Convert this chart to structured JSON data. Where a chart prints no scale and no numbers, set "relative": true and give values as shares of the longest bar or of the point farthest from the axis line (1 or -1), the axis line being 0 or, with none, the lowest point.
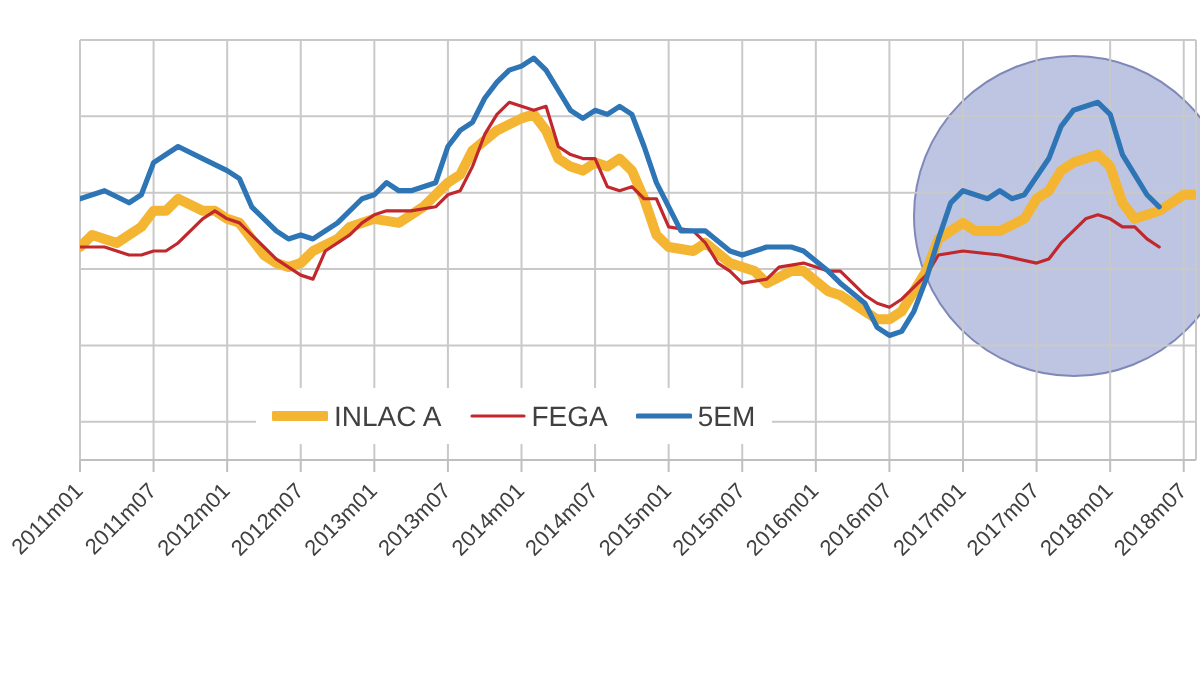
{
  "chart_data": {
    "type": "line",
    "relative": true,
    "grid": true,
    "legend": "bottom",
    "xlim": [
      "2011-01",
      "2018-08"
    ],
    "xticks": [
      {
        "value": "2011-01",
        "label": "2011m01"
      },
      {
        "value": "2011-07",
        "label": "2011m07"
      },
      {
        "value": "2012-01",
        "label": "2012m01"
      },
      {
        "value": "2012-07",
        "label": "2012m07"
      },
      {
        "value": "2013-01",
        "label": "2013m01"
      },
      {
        "value": "2013-07",
        "label": "2013m07"
      },
      {
        "value": "2014-01",
        "label": "2014m01"
      },
      {
        "value": "2014-07",
        "label": "2014m07"
      },
      {
        "value": "2015-01",
        "label": "2015m01"
      },
      {
        "value": "2015-07",
        "label": "2015m07"
      },
      {
        "value": "2016-01",
        "label": "2016m01"
      },
      {
        "value": "2016-07",
        "label": "2016m07"
      },
      {
        "value": "2017-01",
        "label": "2017m01"
      },
      {
        "value": "2017-07",
        "label": "2017m07"
      },
      {
        "value": "2018-01",
        "label": "2018m01"
      },
      {
        "value": "2018-07",
        "label": "2018m07"
      }
    ],
    "series": [
      {
        "name": "INLAC A",
        "color": "#f4b532",
        "x": [
          "2011-01",
          "2011-02",
          "2011-04",
          "2011-06",
          "2011-07",
          "2011-08",
          "2011-09",
          "2011-11",
          "2011-12",
          "2012-01",
          "2012-02",
          "2012-03",
          "2012-04",
          "2012-05",
          "2012-06",
          "2012-07",
          "2012-08",
          "2012-10",
          "2012-11",
          "2013-01",
          "2013-03",
          "2013-05",
          "2013-07",
          "2013-08",
          "2013-09",
          "2013-11",
          "2014-01",
          "2014-02",
          "2014-03",
          "2014-04",
          "2014-05",
          "2014-06",
          "2014-07",
          "2014-08",
          "2014-09",
          "2014-10",
          "2014-11",
          "2014-12",
          "2015-01",
          "2015-03",
          "2015-04",
          "2015-06",
          "2015-08",
          "2015-09",
          "2015-11",
          "2015-12",
          "2016-02",
          "2016-03",
          "2016-04",
          "2016-06",
          "2016-07",
          "2016-08",
          "2016-10",
          "2016-11",
          "2017-01",
          "2017-02",
          "2017-04",
          "2017-06",
          "2017-07",
          "2017-08",
          "2017-09",
          "2017-10",
          "2017-11",
          "2017-12",
          "2018-01",
          "2018-02",
          "2018-03",
          "2018-05",
          "2018-07",
          "2018-08"
        ],
        "values": [
          0.53,
          0.56,
          0.54,
          0.58,
          0.62,
          0.62,
          0.65,
          0.62,
          0.62,
          0.6,
          0.59,
          0.55,
          0.51,
          0.49,
          0.48,
          0.49,
          0.52,
          0.55,
          0.58,
          0.6,
          0.59,
          0.63,
          0.69,
          0.71,
          0.77,
          0.82,
          0.85,
          0.86,
          0.82,
          0.75,
          0.73,
          0.72,
          0.74,
          0.73,
          0.75,
          0.72,
          0.65,
          0.56,
          0.53,
          0.52,
          0.54,
          0.49,
          0.47,
          0.44,
          0.47,
          0.47,
          0.42,
          0.41,
          0.39,
          0.35,
          0.35,
          0.37,
          0.47,
          0.55,
          0.59,
          0.57,
          0.57,
          0.6,
          0.65,
          0.67,
          0.72,
          0.74,
          0.75,
          0.76,
          0.73,
          0.64,
          0.6,
          0.62,
          0.66,
          0.66
        ]
      },
      {
        "name": "FEGA",
        "color": "#c0282d",
        "x": [
          "2011-01",
          "2011-03",
          "2011-04",
          "2011-05",
          "2011-06",
          "2011-07",
          "2011-08",
          "2011-09",
          "2011-10",
          "2011-11",
          "2011-12",
          "2012-01",
          "2012-02",
          "2012-04",
          "2012-05",
          "2012-06",
          "2012-07",
          "2012-08",
          "2012-09",
          "2012-11",
          "2012-12",
          "2013-01",
          "2013-02",
          "2013-03",
          "2013-04",
          "2013-06",
          "2013-07",
          "2013-08",
          "2013-09",
          "2013-10",
          "2013-11",
          "2013-12",
          "2014-01",
          "2014-02",
          "2014-03",
          "2014-04",
          "2014-05",
          "2014-06",
          "2014-07",
          "2014-08",
          "2014-09",
          "2014-10",
          "2014-11",
          "2014-12",
          "2015-01",
          "2015-03",
          "2015-04",
          "2015-05",
          "2015-06",
          "2015-07",
          "2015-09",
          "2015-10",
          "2015-12",
          "2016-02",
          "2016-03",
          "2016-04",
          "2016-05",
          "2016-06",
          "2016-07",
          "2016-08",
          "2016-10",
          "2016-11",
          "2017-01",
          "2017-04",
          "2017-07",
          "2017-08",
          "2017-09",
          "2017-10",
          "2017-11",
          "2017-12",
          "2018-01",
          "2018-02",
          "2018-03",
          "2018-04",
          "2018-05"
        ],
        "values": [
          0.53,
          0.53,
          0.52,
          0.51,
          0.51,
          0.52,
          0.52,
          0.54,
          0.57,
          0.6,
          0.62,
          0.6,
          0.59,
          0.53,
          0.5,
          0.48,
          0.46,
          0.45,
          0.52,
          0.56,
          0.59,
          0.61,
          0.62,
          0.62,
          0.62,
          0.63,
          0.66,
          0.67,
          0.73,
          0.81,
          0.86,
          0.89,
          0.88,
          0.87,
          0.88,
          0.78,
          0.76,
          0.75,
          0.75,
          0.68,
          0.67,
          0.68,
          0.65,
          0.65,
          0.58,
          0.57,
          0.54,
          0.49,
          0.47,
          0.44,
          0.45,
          0.48,
          0.49,
          0.47,
          0.47,
          0.44,
          0.41,
          0.39,
          0.38,
          0.4,
          0.46,
          0.51,
          0.52,
          0.51,
          0.49,
          0.5,
          0.54,
          0.57,
          0.6,
          0.61,
          0.6,
          0.58,
          0.58,
          0.55,
          0.53
        ]
      },
      {
        "name": "5EM",
        "color": "#2e75b6",
        "x": [
          "2011-01",
          "2011-03",
          "2011-05",
          "2011-06",
          "2011-07",
          "2011-09",
          "2011-11",
          "2012-01",
          "2012-02",
          "2012-03",
          "2012-05",
          "2012-06",
          "2012-07",
          "2012-08",
          "2012-10",
          "2012-12",
          "2013-01",
          "2013-02",
          "2013-03",
          "2013-04",
          "2013-06",
          "2013-07",
          "2013-08",
          "2013-09",
          "2013-10",
          "2013-11",
          "2013-12",
          "2014-01",
          "2014-02",
          "2014-03",
          "2014-04",
          "2014-05",
          "2014-06",
          "2014-07",
          "2014-08",
          "2014-09",
          "2014-10",
          "2014-11",
          "2014-12",
          "2015-02",
          "2015-04",
          "2015-06",
          "2015-07",
          "2015-09",
          "2015-11",
          "2015-12",
          "2016-02",
          "2016-03",
          "2016-05",
          "2016-06",
          "2016-07",
          "2016-08",
          "2016-09",
          "2016-10",
          "2016-11",
          "2016-12",
          "2017-01",
          "2017-03",
          "2017-04",
          "2017-05",
          "2017-06",
          "2017-08",
          "2017-09",
          "2017-10",
          "2017-11",
          "2017-12",
          "2018-01",
          "2018-02",
          "2018-03",
          "2018-04",
          "2018-05"
        ],
        "values": [
          0.65,
          0.67,
          0.64,
          0.66,
          0.74,
          0.78,
          0.75,
          0.72,
          0.7,
          0.63,
          0.57,
          0.55,
          0.56,
          0.55,
          0.59,
          0.65,
          0.66,
          0.69,
          0.67,
          0.67,
          0.69,
          0.78,
          0.82,
          0.84,
          0.9,
          0.94,
          0.97,
          0.98,
          1,
          0.97,
          0.92,
          0.87,
          0.85,
          0.87,
          0.86,
          0.88,
          0.86,
          0.78,
          0.69,
          0.57,
          0.57,
          0.52,
          0.51,
          0.53,
          0.53,
          0.52,
          0.47,
          0.44,
          0.39,
          0.33,
          0.31,
          0.32,
          0.37,
          0.45,
          0.55,
          0.64,
          0.67,
          0.65,
          0.67,
          0.65,
          0.66,
          0.75,
          0.83,
          0.87,
          0.88,
          0.89,
          0.86,
          0.76,
          0.71,
          0.66,
          0.63
        ]
      }
    ]
  }
}
